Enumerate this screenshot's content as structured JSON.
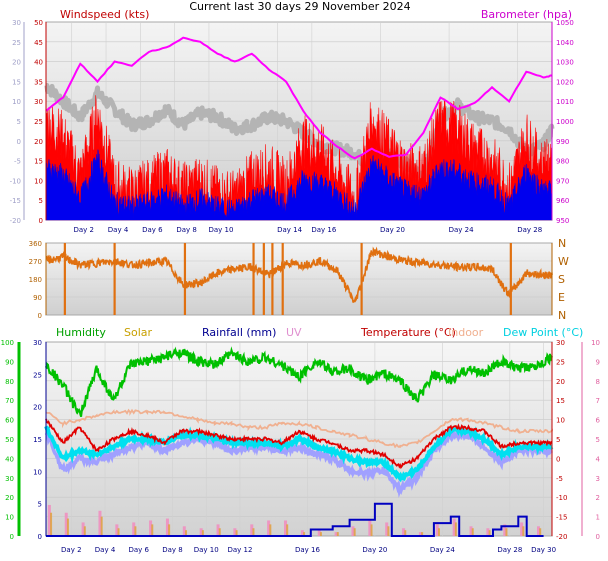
{
  "header": {
    "title": "Current last 30 days 29 November 2024"
  },
  "colors": {
    "windspeed": "#ff0000",
    "gust_base": "#0000ee",
    "barometer": "#ff00ff",
    "wind_avg_grey": "#b4b4b4",
    "direction": "#e07010",
    "humidity": "#00c000",
    "solar": "#e0a040",
    "rainfall": "#0000c0",
    "uv": "#e080c0",
    "temperature": "#e00000",
    "indoor": "#f0b090",
    "dew_point": "#00e0f0",
    "apparent": "#a0a0ff",
    "axis_left_speed": "#a0a0c8",
    "axis_dir": "#b06000"
  },
  "chart_data": [
    {
      "type": "line",
      "panel": "wind-barometer",
      "title": "",
      "x_labels": [
        "Day 2",
        "Day 4",
        "Day 6",
        "Day 8",
        "Day 10",
        "Day 14",
        "Day 16",
        "Day 20",
        "Day 24",
        "Day 28"
      ],
      "x_days": [
        2,
        4,
        6,
        8,
        10,
        14,
        16,
        20,
        24,
        28
      ],
      "xlim": [
        0.5,
        30.0
      ],
      "left_axis_1": {
        "label": "Windspeed (kts)",
        "ticks": [
          0,
          5,
          10,
          15,
          20,
          25,
          30,
          35,
          40,
          45,
          50
        ],
        "ylim": [
          0,
          50
        ]
      },
      "left_axis_2": {
        "label": "",
        "ticks": [
          -20,
          -15,
          -10,
          -5,
          0,
          5,
          10,
          15,
          20,
          25,
          30
        ],
        "ylim": [
          -20,
          30
        ]
      },
      "right_axis": {
        "label": "Barometer (hpa)",
        "ticks": [
          950,
          960,
          970,
          980,
          990,
          1000,
          1010,
          1020,
          1030,
          1040,
          1050
        ],
        "ylim": [
          950,
          1050
        ]
      },
      "series": [
        {
          "name": "Barometer (hpa)",
          "axis": "right",
          "x": [
            0.5,
            1.5,
            2.5,
            3.5,
            4.5,
            5.5,
            6.5,
            7.5,
            8.5,
            9.5,
            10.5,
            11.5,
            12.5,
            13.5,
            14.5,
            15.5,
            16.5,
            17.5,
            18.5,
            19.5,
            20.5,
            21.5,
            22.5,
            23.5,
            24.5,
            25.5,
            26.5,
            27.5,
            28.5,
            29.5,
            30.0
          ],
          "y": [
            1005,
            1012,
            1029,
            1020,
            1030,
            1028,
            1035,
            1037,
            1042,
            1040,
            1034,
            1030,
            1034,
            1026,
            1020,
            1005,
            994,
            987,
            981,
            986,
            982,
            983,
            994,
            1012,
            1006,
            1009,
            1017,
            1010,
            1025,
            1022,
            1023
          ]
        },
        {
          "name": "",
          "axis": "left_2",
          "x": [
            0.5,
            1.5,
            2.5,
            3.5,
            4.5,
            5.5,
            6.5,
            7.5,
            8.5,
            9.5,
            10.5,
            11.5,
            12.5,
            13.5,
            14.5,
            15.5,
            16.5,
            17.5,
            18.5,
            19.5,
            20.5,
            21.5,
            22.5,
            23.5,
            24.5,
            25.5,
            26.5,
            27.5,
            28.5,
            29.5,
            30.0
          ],
          "y": [
            14,
            10,
            6,
            12,
            8,
            4,
            5,
            8,
            4,
            7,
            6,
            3,
            4,
            6,
            5,
            2,
            -1,
            -2,
            -3,
            -7,
            -3,
            -6,
            -9,
            6,
            9,
            6,
            5,
            3,
            -3,
            -1,
            3
          ]
        },
        {
          "name": "",
          "axis": "left_1",
          "x": [
            0.5,
            1.5,
            2.5,
            3.5,
            4.5,
            5.5,
            6.5,
            7.5,
            8.5,
            9.5,
            10.5,
            11.5,
            12.5,
            13.5,
            14.5,
            15.5,
            16.5,
            17.5,
            18.5,
            19.5,
            20.5,
            21.5,
            22.5,
            23.5,
            24.5,
            25.5,
            26.5,
            27.5,
            28.5,
            29.5,
            30.0
          ],
          "y": [
            22,
            18,
            8,
            24,
            6,
            4,
            6,
            9,
            5,
            7,
            4,
            3,
            8,
            10,
            6,
            17,
            15,
            9,
            2,
            22,
            16,
            10,
            10,
            22,
            20,
            15,
            12,
            5,
            18,
            10,
            12
          ]
        },
        {
          "name": "",
          "axis": "left_1",
          "x": [
            0.5,
            1.5,
            2.5,
            3.5,
            4.5,
            5.5,
            6.5,
            7.5,
            8.5,
            9.5,
            10.5,
            11.5,
            12.5,
            13.5,
            14.5,
            15.5,
            16.5,
            17.5,
            18.5,
            19.5,
            20.5,
            21.5,
            22.5,
            23.5,
            24.5,
            25.5,
            26.5,
            27.5,
            28.5,
            29.5,
            30.0
          ],
          "y": [
            12,
            10,
            4,
            14,
            3,
            2,
            3,
            5,
            2,
            4,
            2,
            1,
            4,
            5,
            3,
            9,
            8,
            5,
            1,
            13,
            9,
            6,
            5,
            12,
            11,
            8,
            7,
            2,
            11,
            6,
            6
          ]
        }
      ]
    },
    {
      "type": "scatter",
      "panel": "wind-direction",
      "title": "",
      "left_axis": {
        "label": "",
        "ticks": [
          0,
          90,
          180,
          270,
          360
        ],
        "ylim": [
          0,
          360
        ]
      },
      "right_axis": {
        "label": "",
        "tick_labels": [
          "N",
          "W",
          "S",
          "E",
          "N"
        ]
      },
      "series": [
        {
          "name": "",
          "x": [
            0.5,
            1.5,
            2.5,
            3.5,
            4.5,
            5.5,
            6.5,
            7.5,
            8.5,
            9.5,
            10.5,
            11.5,
            12.5,
            13.5,
            14.5,
            15.5,
            16.5,
            17.5,
            18.5,
            19.5,
            20.5,
            21.5,
            22.5,
            23.5,
            24.5,
            25.5,
            26.5,
            27.5,
            28.5,
            29.5,
            30.0
          ],
          "y": [
            270,
            290,
            250,
            260,
            270,
            250,
            260,
            270,
            150,
            160,
            210,
            230,
            240,
            200,
            260,
            250,
            270,
            220,
            60,
            320,
            290,
            270,
            260,
            250,
            240,
            240,
            230,
            100,
            210,
            200,
            200
          ]
        }
      ]
    },
    {
      "type": "line",
      "panel": "weather",
      "title": "",
      "x_labels": [
        "Day 2",
        "Day 4",
        "Day 6",
        "Day 8",
        "Day 10",
        "Day 12",
        "Day 16",
        "Day 20",
        "Day 24",
        "Day 28",
        "Day 30"
      ],
      "x_days": [
        2,
        4,
        6,
        8,
        10,
        12,
        16,
        20,
        24,
        28,
        30
      ],
      "xlim": [
        0.5,
        30.5
      ],
      "legend": [
        "Humidity",
        "Solar",
        "Rainfall (mm)",
        "UV",
        "Temperature (°C)",
        "Indoor",
        "Dew Point (°C)"
      ],
      "legend_position": "top",
      "axis_humidity": {
        "label": "",
        "ticks": [
          0,
          10,
          20,
          30,
          40,
          50,
          60,
          70,
          80,
          90,
          100
        ],
        "ylim": [
          0,
          100
        ]
      },
      "axis_rain": {
        "label": "",
        "ticks": [
          0,
          5,
          10,
          15,
          20,
          25,
          30
        ],
        "ylim": [
          0,
          30
        ]
      },
      "axis_uv": {
        "label": "",
        "ticks": [
          0,
          1,
          2,
          3,
          4,
          5,
          6,
          7,
          8,
          9,
          10
        ],
        "ylim": [
          0,
          10
        ]
      },
      "axis_temp": {
        "label": "",
        "ticks": [
          -20,
          -15,
          -10,
          -5,
          0,
          5,
          10,
          15,
          20,
          25,
          30
        ],
        "ylim": [
          -20,
          30
        ]
      },
      "series": [
        {
          "name": "Humidity",
          "axis": "humidity",
          "x": [
            0.5,
            1.5,
            2.5,
            3.5,
            4.5,
            5.5,
            6.5,
            7.5,
            8.5,
            9.5,
            10.5,
            11.5,
            12.5,
            13.5,
            14.5,
            15.5,
            16.5,
            17.5,
            18.5,
            19.5,
            20.5,
            21.5,
            22.5,
            23.5,
            24.5,
            25.5,
            26.5,
            27.5,
            28.5,
            29.5,
            30.5
          ],
          "y": [
            88,
            78,
            62,
            86,
            70,
            88,
            90,
            92,
            95,
            90,
            88,
            94,
            90,
            92,
            88,
            82,
            90,
            85,
            86,
            80,
            84,
            80,
            70,
            83,
            80,
            86,
            84,
            90,
            86,
            88,
            92
          ]
        },
        {
          "name": "Temperature (°C)",
          "axis": "temp",
          "x": [
            0.5,
            1.5,
            2.5,
            3.5,
            4.5,
            5.5,
            6.5,
            7.5,
            8.5,
            9.5,
            10.5,
            11.5,
            12.5,
            13.5,
            14.5,
            15.5,
            16.5,
            17.5,
            18.5,
            19.5,
            20.5,
            21.5,
            22.5,
            23.5,
            24.5,
            25.5,
            26.5,
            27.5,
            28.5,
            29.5,
            30.5
          ],
          "y": [
            10,
            4,
            8,
            2,
            5,
            7,
            6,
            4,
            7,
            7,
            6,
            5,
            5,
            5,
            4,
            7,
            5,
            4,
            2,
            2,
            1,
            -2,
            0,
            5,
            8,
            8,
            7,
            3,
            4,
            4,
            4
          ]
        },
        {
          "name": "Dew Point (°C)",
          "axis": "temp",
          "x": [
            0.5,
            1.5,
            2.5,
            3.5,
            4.5,
            5.5,
            6.5,
            7.5,
            8.5,
            9.5,
            10.5,
            11.5,
            12.5,
            13.5,
            14.5,
            15.5,
            16.5,
            17.5,
            18.5,
            19.5,
            20.5,
            21.5,
            22.5,
            23.5,
            24.5,
            25.5,
            26.5,
            27.5,
            28.5,
            29.5,
            30.5
          ],
          "y": [
            8,
            0,
            2,
            1,
            3,
            5,
            5,
            4,
            6,
            6,
            5,
            4,
            4,
            4,
            3,
            5,
            3,
            2,
            0,
            -1,
            -1,
            -5,
            -3,
            3,
            7,
            7,
            5,
            1,
            3,
            3,
            3
          ]
        },
        {
          "name": "Indoor",
          "axis": "temp",
          "x": [
            0.5,
            1.5,
            2.5,
            3.5,
            4.5,
            5.5,
            6.5,
            7.5,
            8.5,
            9.5,
            10.5,
            11.5,
            12.5,
            13.5,
            14.5,
            15.5,
            16.5,
            17.5,
            18.5,
            19.5,
            20.5,
            21.5,
            22.5,
            23.5,
            24.5,
            25.5,
            26.5,
            27.5,
            28.5,
            29.5,
            30.5
          ],
          "y": [
            12,
            9,
            10,
            11,
            12,
            12,
            12,
            12,
            11,
            10,
            9,
            9,
            8,
            8,
            9,
            9,
            8,
            7,
            6,
            5,
            4,
            3,
            4,
            7,
            10,
            10,
            9,
            8,
            7,
            7,
            7
          ]
        },
        {
          "name": "",
          "axis": "temp",
          "x": [
            0.5,
            1.5,
            2.5,
            3.5,
            4.5,
            5.5,
            6.5,
            7.5,
            8.5,
            9.5,
            10.5,
            11.5,
            12.5,
            13.5,
            14.5,
            15.5,
            16.5,
            17.5,
            18.5,
            19.5,
            20.5,
            21.5,
            22.5,
            23.5,
            24.5,
            25.5,
            26.5,
            27.5,
            28.5,
            29.5,
            30.5
          ],
          "y": [
            7,
            -3,
            0,
            -1,
            1,
            3,
            4,
            2,
            4,
            5,
            4,
            2,
            3,
            3,
            2,
            3,
            1,
            0,
            -3,
            -4,
            -3,
            -8,
            -5,
            2,
            6,
            6,
            3,
            -1,
            2,
            2,
            2
          ]
        },
        {
          "name": "Rainfall (mm)",
          "axis": "rain",
          "x": [
            0.5,
            16.0,
            16.2,
            17.0,
            17.5,
            18.0,
            18.5,
            19.5,
            20.0,
            20.5,
            21.0,
            23.0,
            23.5,
            24.0,
            24.5,
            25.0,
            26.5,
            27.0,
            27.5,
            28.0,
            28.5,
            29.0,
            30.0
          ],
          "y": [
            0,
            0,
            1,
            1,
            1.5,
            1.5,
            2.5,
            2.5,
            5,
            5,
            0,
            0,
            2,
            2,
            3,
            0,
            0,
            1,
            1.5,
            1.5,
            3,
            0,
            0
          ]
        },
        {
          "name": "UV",
          "axis": "uv",
          "x": [
            0.7,
            1.7,
            2.7,
            3.7,
            4.7,
            5.7,
            6.7,
            7.7,
            8.7,
            9.7,
            10.7,
            11.7,
            12.7,
            13.7,
            14.7,
            15.7,
            16.7,
            17.7,
            18.7,
            19.7,
            20.7,
            21.7,
            22.7,
            23.7,
            24.7,
            25.7,
            26.7,
            27.7,
            28.7,
            29.7
          ],
          "y": [
            1.6,
            1.2,
            0.7,
            1.3,
            0.6,
            0.7,
            0.8,
            0.9,
            0.5,
            0.4,
            0.6,
            0.4,
            0.6,
            0.8,
            0.8,
            0.3,
            0.3,
            0.2,
            0.5,
            0.8,
            0.7,
            0.4,
            0.2,
            0.6,
            0.9,
            0.5,
            0.4,
            0.6,
            0.7,
            0.5
          ]
        },
        {
          "name": "Solar",
          "axis": "uv",
          "x": [
            0.8,
            1.8,
            2.8,
            3.8,
            4.8,
            5.8,
            6.8,
            7.8,
            8.8,
            9.8,
            10.8,
            11.8,
            12.8,
            13.8,
            14.8,
            15.8,
            16.8,
            17.8,
            18.8,
            19.8,
            20.8,
            21.8,
            22.8,
            23.8,
            24.8,
            25.8,
            26.8,
            27.8,
            28.8,
            29.8
          ],
          "y": [
            1.2,
            0.9,
            0.5,
            1.0,
            0.4,
            0.5,
            0.6,
            0.6,
            0.3,
            0.3,
            0.4,
            0.3,
            0.4,
            0.6,
            0.6,
            0.2,
            0.2,
            0.2,
            0.4,
            0.6,
            0.5,
            0.3,
            0.2,
            0.4,
            0.7,
            0.4,
            0.3,
            0.4,
            0.5,
            0.4
          ]
        }
      ]
    }
  ],
  "labels": {
    "windspeed": "Windspeed (kts)",
    "barometer": "Barometer (hpa)",
    "humidity": "Humidity",
    "solar": "Solar",
    "rainfall": "Rainfall (mm)",
    "uv": "UV",
    "temperature": "Temperature (°C)",
    "indoor": "Indoor",
    "dew_point": "Dew Point (°C)"
  }
}
